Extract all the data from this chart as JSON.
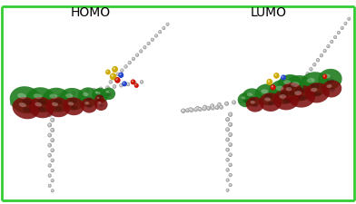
{
  "title_left": "HOMO",
  "title_right": "LUMO",
  "title_fontsize": 10,
  "border_color": "#33cc33",
  "border_linewidth": 2.0,
  "fig_width": 3.92,
  "fig_height": 2.26,
  "background": "#f8f8f8",
  "green_blob": "#1a7a1a",
  "red_blob": "#7a0a0a",
  "gray_atom": "#909090",
  "gray_light": "#c0c0c0",
  "yellow_atom": "#ccaa00",
  "blue_atom": "#2244cc",
  "red_atom": "#cc1100",
  "white_hi": "#ffffff",
  "homo_blobs_green": [
    [
      0.13,
      0.52,
      0.095,
      0.075,
      -12
    ],
    [
      0.22,
      0.52,
      0.09,
      0.07,
      -10
    ],
    [
      0.31,
      0.52,
      0.085,
      0.068,
      -8
    ],
    [
      0.4,
      0.525,
      0.078,
      0.062,
      -6
    ],
    [
      0.49,
      0.535,
      0.06,
      0.055,
      -4
    ],
    [
      0.56,
      0.545,
      0.048,
      0.042,
      -2
    ],
    [
      0.61,
      0.555,
      0.038,
      0.034,
      0
    ]
  ],
  "homo_blobs_red": [
    [
      0.13,
      0.475,
      0.08,
      0.06,
      -12
    ],
    [
      0.22,
      0.478,
      0.075,
      0.058,
      -10
    ],
    [
      0.315,
      0.48,
      0.07,
      0.055,
      -8
    ],
    [
      0.405,
      0.485,
      0.062,
      0.05,
      -6
    ],
    [
      0.495,
      0.49,
      0.048,
      0.042,
      -4
    ],
    [
      0.565,
      0.495,
      0.038,
      0.034,
      -2
    ]
  ],
  "lumo_blobs_green": [
    [
      0.42,
      0.535,
      0.06,
      0.05,
      -5
    ],
    [
      0.51,
      0.55,
      0.075,
      0.06,
      -3
    ],
    [
      0.6,
      0.565,
      0.085,
      0.068,
      -1
    ],
    [
      0.69,
      0.585,
      0.09,
      0.072,
      2
    ],
    [
      0.78,
      0.608,
      0.085,
      0.068,
      5
    ],
    [
      0.87,
      0.635,
      0.07,
      0.058,
      8
    ],
    [
      0.38,
      0.52,
      0.045,
      0.04,
      -8
    ]
  ],
  "lumo_blobs_red": [
    [
      0.435,
      0.495,
      0.052,
      0.042,
      -5
    ],
    [
      0.525,
      0.508,
      0.065,
      0.052,
      -3
    ],
    [
      0.615,
      0.522,
      0.075,
      0.058,
      -1
    ],
    [
      0.705,
      0.54,
      0.08,
      0.062,
      2
    ],
    [
      0.795,
      0.56,
      0.072,
      0.056,
      5
    ],
    [
      0.88,
      0.582,
      0.058,
      0.048,
      8
    ]
  ]
}
